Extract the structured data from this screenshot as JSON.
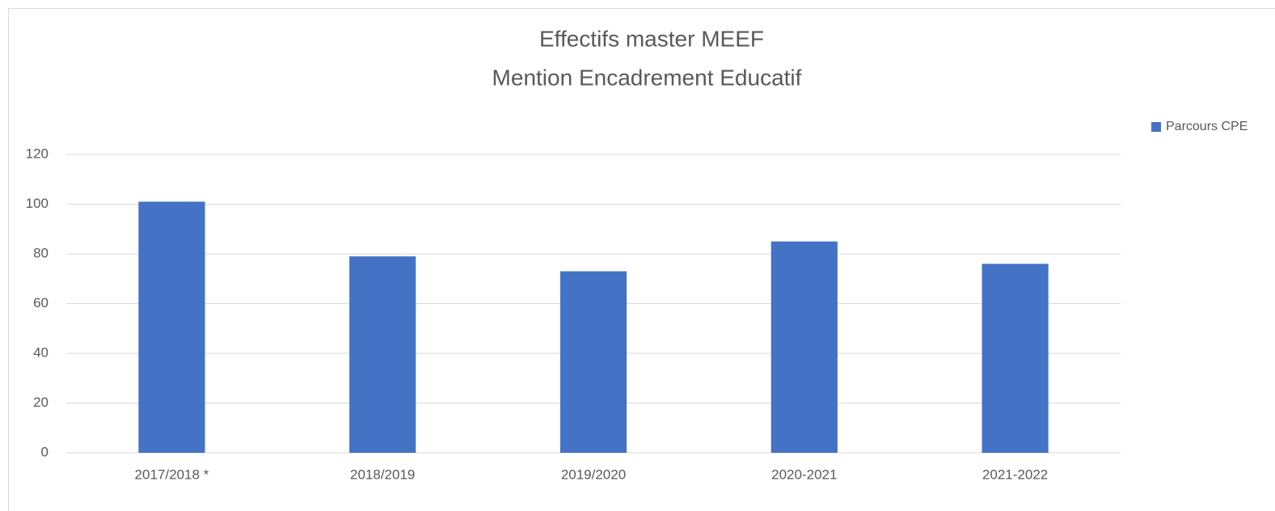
{
  "chart_data": {
    "type": "bar",
    "title": [
      "Effectifs master MEEF",
      "Mention Encadrement Educatif"
    ],
    "categories": [
      "2017/2018 *",
      "2018/2019",
      "2019/2020",
      "2020-2021",
      "2021-2022"
    ],
    "series": [
      {
        "name": "Parcours CPE",
        "color": "#4472c4",
        "values": [
          101,
          79,
          73,
          85,
          76
        ]
      }
    ],
    "ylim": [
      0,
      120
    ],
    "yticks": [
      0,
      20,
      40,
      60,
      80,
      100,
      120
    ],
    "grid": true,
    "legend": "right"
  }
}
